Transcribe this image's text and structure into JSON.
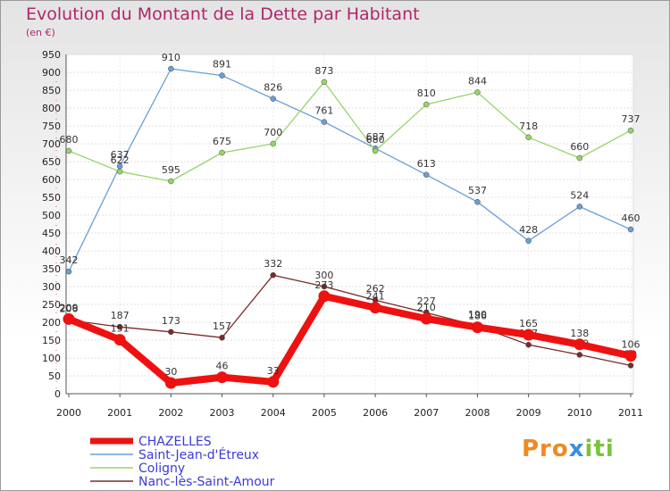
{
  "chart_data": {
    "type": "line",
    "title": "Evolution du Montant de la Dette par Habitant",
    "subtitle": "(en €)",
    "x": [
      "2000",
      "2001",
      "2002",
      "2003",
      "2004",
      "2005",
      "2006",
      "2007",
      "2008",
      "2009",
      "2010",
      "2011"
    ],
    "ylim": [
      0,
      950
    ],
    "yticks": [
      0,
      50,
      100,
      150,
      200,
      250,
      300,
      350,
      400,
      450,
      500,
      550,
      600,
      650,
      700,
      750,
      800,
      850,
      900,
      950
    ],
    "grid": true,
    "legend_position": "bottom-left",
    "series": [
      {
        "name": "CHAZELLES",
        "color": "#ee1111",
        "values": [
          209,
          151,
          30,
          46,
          33,
          273,
          241,
          210,
          186,
          165,
          138,
          106
        ]
      },
      {
        "name": "Saint-Jean-d'Étreux",
        "color": "#6a9fd4",
        "values": [
          342,
          637,
          910,
          891,
          826,
          761,
          687,
          613,
          537,
          428,
          524,
          460
        ]
      },
      {
        "name": "Coligny",
        "color": "#97d56b",
        "values": [
          680,
          622,
          595,
          675,
          700,
          873,
          680,
          810,
          844,
          718,
          660,
          737
        ]
      },
      {
        "name": "Nanc-lès-Saint-Amour",
        "color": "#7a2a2a",
        "values": [
          206,
          187,
          173,
          157,
          332,
          300,
          262,
          227,
          190,
          137,
          109,
          79
        ]
      }
    ]
  },
  "logo": {
    "p1": "Pro",
    "p2": "x",
    "p3": "iti"
  }
}
